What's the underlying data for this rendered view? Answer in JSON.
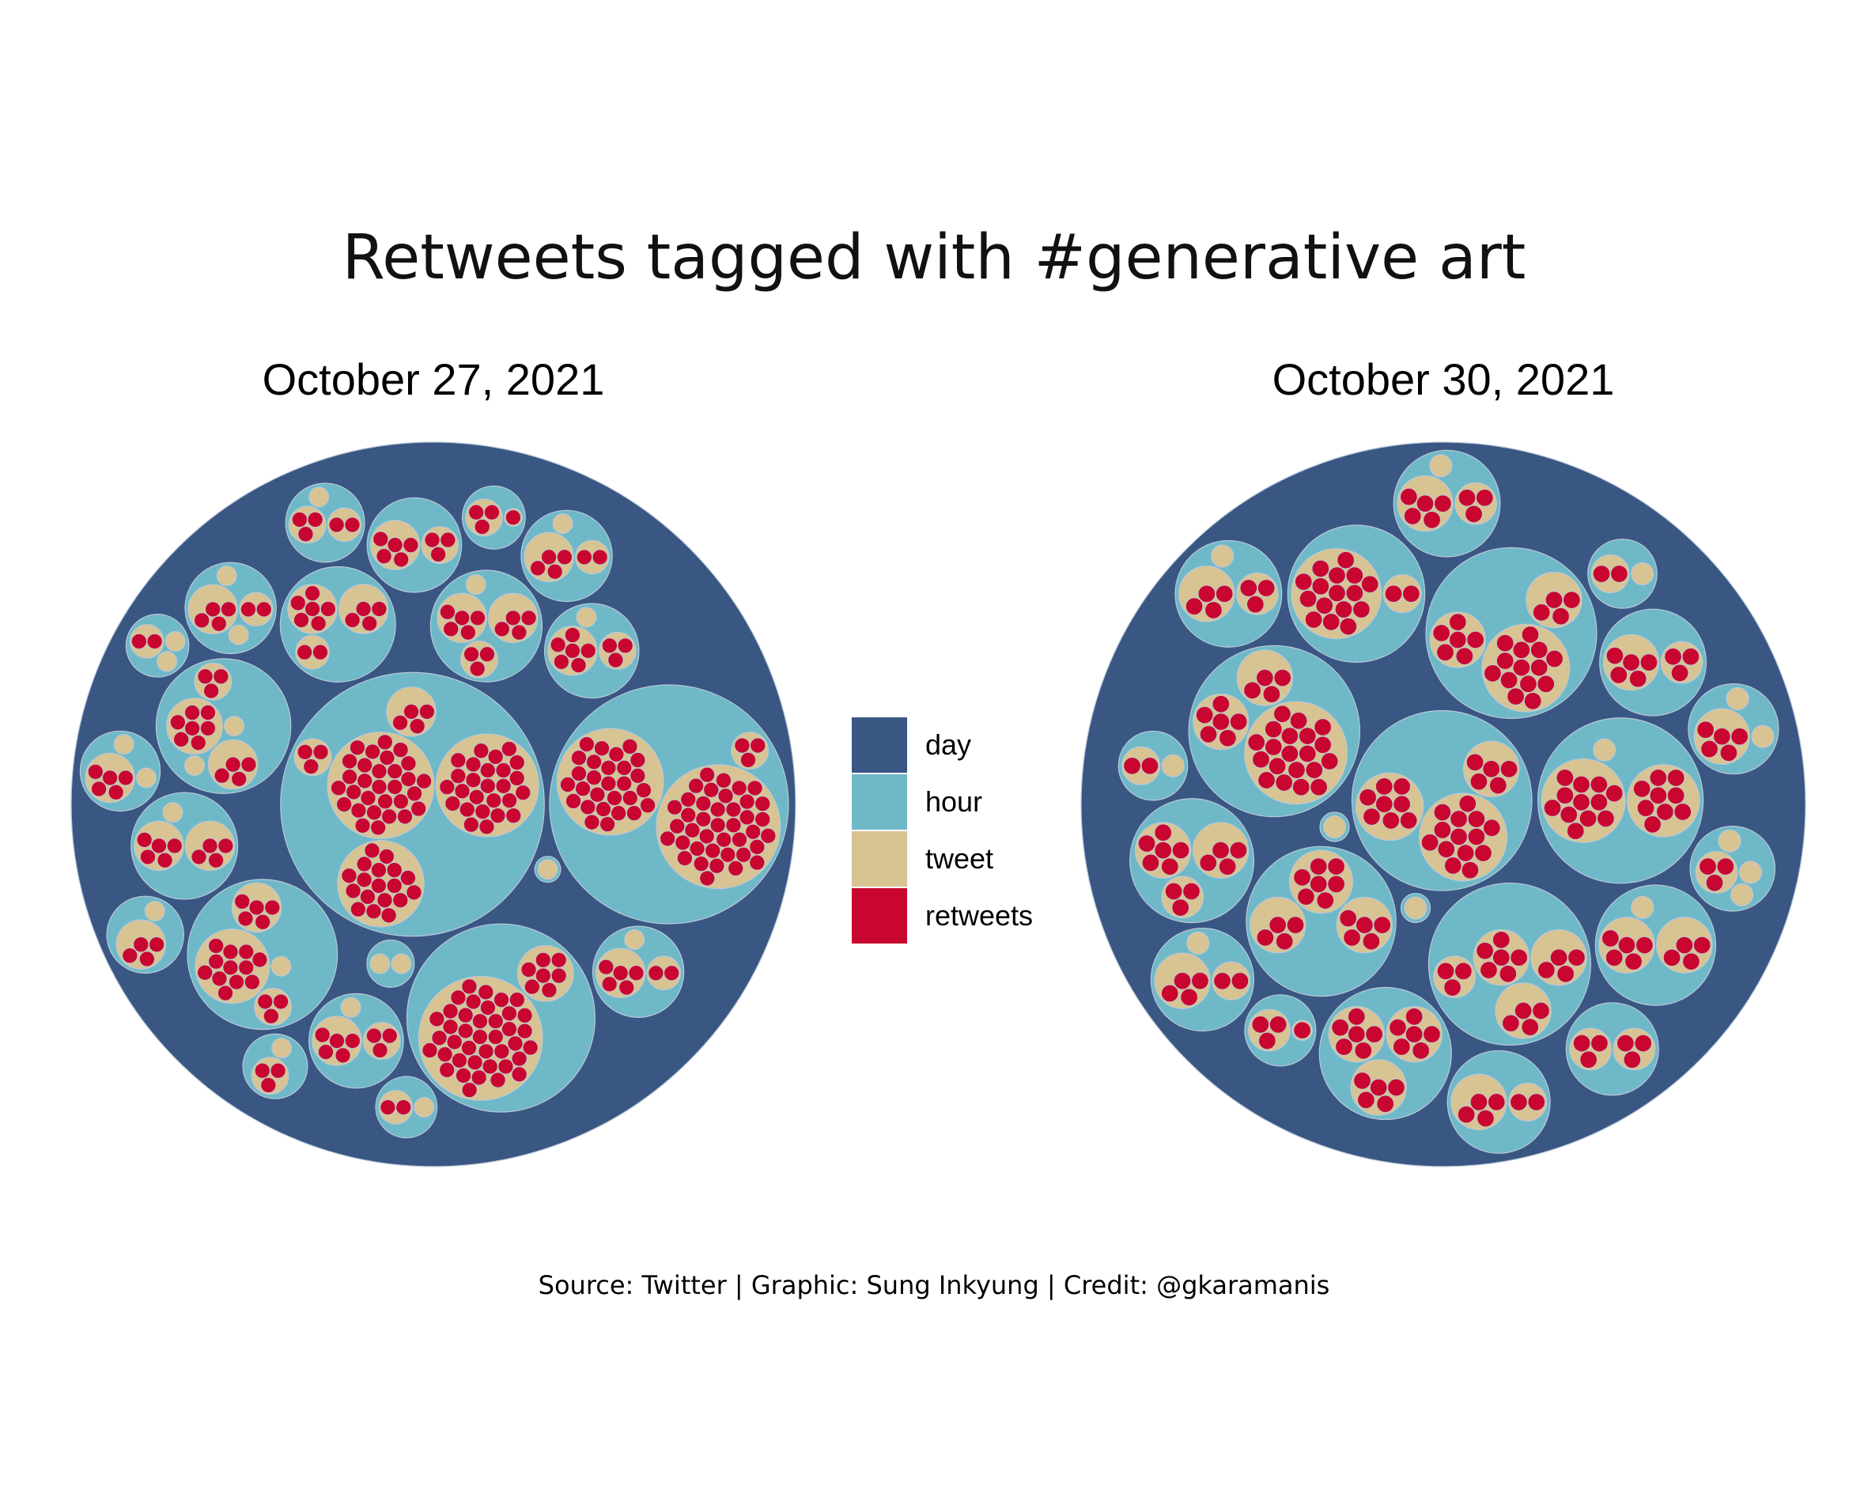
{
  "title": "Retweets tagged with #generative art",
  "caption": "Source: Twitter | Graphic: Sung Inkyung | Credit: @gkaramanis",
  "legend": [
    {
      "label": "day",
      "color": "#3A5683"
    },
    {
      "label": "hour",
      "color": "#6FB8C7"
    },
    {
      "label": "tweet",
      "color": "#D8C393"
    },
    {
      "label": "retweets",
      "color": "#C8062F"
    }
  ],
  "chart_data": [
    {
      "type": "circle-packing",
      "title": "October 27, 2021",
      "hierarchy": [
        "day",
        "hour",
        "tweet",
        "retweets"
      ],
      "hours": [
        {
          "tweets": [
            {
              "retweets": 30
            },
            {
              "retweets": 18
            },
            {
              "retweets": 26
            },
            {
              "retweets": 3
            },
            {
              "retweets": 4
            }
          ]
        },
        {
          "tweets": [
            {
              "retweets": 40
            },
            {
              "retweets": 28
            },
            {
              "retweets": 3
            }
          ]
        },
        {
          "tweets": [
            {
              "retweets": 12
            },
            {
              "retweets": 5
            },
            {
              "retweets": 3
            },
            {
              "retweets": 0
            }
          ]
        },
        {
          "tweets": [
            {
              "retweets": 7
            },
            {
              "retweets": 4
            },
            {
              "retweets": 3
            },
            {
              "retweets": 0
            },
            {
              "retweets": 0
            }
          ]
        },
        {
          "tweets": [
            {
              "retweets": 40
            },
            {
              "retweets": 7
            }
          ]
        },
        {
          "tweets": [
            {
              "retweets": 5
            },
            {
              "retweets": 4
            },
            {
              "retweets": 3
            },
            {
              "retweets": 0
            }
          ]
        },
        {
          "tweets": [
            {
              "retweets": 6
            },
            {
              "retweets": 4
            },
            {
              "retweets": 2
            }
          ]
        },
        {
          "tweets": [
            {
              "retweets": 5
            },
            {
              "retweets": 4
            },
            {
              "retweets": 0
            }
          ]
        },
        {
          "tweets": [
            {
              "retweets": 6
            },
            {
              "retweets": 3
            },
            {
              "retweets": 0
            }
          ]
        },
        {
          "tweets": [
            {
              "retweets": 4
            },
            {
              "retweets": 2
            },
            {
              "retweets": 0
            },
            {
              "retweets": 0
            }
          ]
        },
        {
          "tweets": [
            {
              "retweets": 5
            },
            {
              "retweets": 2
            },
            {
              "retweets": 0
            }
          ]
        },
        {
          "tweets": [
            {
              "retweets": 5
            },
            {
              "retweets": 3
            },
            {
              "retweets": 0
            }
          ]
        },
        {
          "tweets": [
            {
              "retweets": 5
            },
            {
              "retweets": 0
            },
            {
              "retweets": 0
            }
          ]
        },
        {
          "tweets": [
            {
              "retweets": 5
            },
            {
              "retweets": 3
            }
          ]
        },
        {
          "tweets": [
            {
              "retweets": 4
            },
            {
              "retweets": 2
            },
            {
              "retweets": 0
            }
          ]
        },
        {
          "tweets": [
            {
              "retweets": 3
            },
            {
              "retweets": 2
            },
            {
              "retweets": 0
            }
          ]
        },
        {
          "tweets": [
            {
              "retweets": 4
            },
            {
              "retweets": 0
            }
          ]
        },
        {
          "tweets": [
            {
              "retweets": 3
            },
            {
              "retweets": 1
            }
          ]
        },
        {
          "tweets": [
            {
              "retweets": 2
            },
            {
              "retweets": 0
            }
          ]
        },
        {
          "tweets": [
            {
              "retweets": 3
            },
            {
              "retweets": 0
            }
          ]
        },
        {
          "tweets": [
            {
              "retweets": 2
            },
            {
              "retweets": 0
            },
            {
              "retweets": 0
            }
          ]
        },
        {
          "tweets": [
            {
              "retweets": 0
            },
            {
              "retweets": 0
            }
          ]
        },
        {
          "tweets": [
            {
              "retweets": 0
            }
          ]
        }
      ]
    },
    {
      "type": "circle-packing",
      "title": "October 30, 2021",
      "hierarchy": [
        "day",
        "hour",
        "tweet",
        "retweets"
      ],
      "hours": [
        {
          "tweets": [
            {
              "retweets": 20
            },
            {
              "retweets": 6
            },
            {
              "retweets": 4
            }
          ]
        },
        {
          "tweets": [
            {
              "retweets": 14
            },
            {
              "retweets": 6
            },
            {
              "retweets": 4
            }
          ]
        },
        {
          "tweets": [
            {
              "retweets": 14
            },
            {
              "retweets": 8
            },
            {
              "retweets": 5
            }
          ]
        },
        {
          "tweets": [
            {
              "retweets": 12
            },
            {
              "retweets": 9
            },
            {
              "retweets": 0
            }
          ]
        },
        {
          "tweets": [
            {
              "retweets": 6
            },
            {
              "retweets": 6
            },
            {
              "retweets": 5
            }
          ]
        },
        {
          "tweets": [
            {
              "retweets": 7
            },
            {
              "retweets": 5
            },
            {
              "retweets": 4
            }
          ]
        },
        {
          "tweets": [
            {
              "retweets": 16
            },
            {
              "retweets": 2
            }
          ]
        },
        {
          "tweets": [
            {
              "retweets": 6
            },
            {
              "retweets": 4
            },
            {
              "retweets": 4
            },
            {
              "retweets": 3
            }
          ]
        },
        {
          "tweets": [
            {
              "retweets": 6
            },
            {
              "retweets": 4
            },
            {
              "retweets": 3
            }
          ]
        },
        {
          "tweets": [
            {
              "retweets": 5
            },
            {
              "retweets": 0
            },
            {
              "retweets": 0
            }
          ]
        },
        {
          "tweets": [
            {
              "retweets": 5
            },
            {
              "retweets": 3
            }
          ]
        },
        {
          "tweets": [
            {
              "retweets": 5
            },
            {
              "retweets": 4
            },
            {
              "retweets": 0
            }
          ]
        },
        {
          "tweets": [
            {
              "retweets": 5
            },
            {
              "retweets": 3
            },
            {
              "retweets": 0
            }
          ]
        },
        {
          "tweets": [
            {
              "retweets": 4
            },
            {
              "retweets": 3
            },
            {
              "retweets": 0
            }
          ]
        },
        {
          "tweets": [
            {
              "retweets": 4
            },
            {
              "retweets": 2
            },
            {
              "retweets": 0
            }
          ]
        },
        {
          "tweets": [
            {
              "retweets": 4
            },
            {
              "retweets": 2
            }
          ]
        },
        {
          "tweets": [
            {
              "retweets": 3
            },
            {
              "retweets": 3
            }
          ]
        },
        {
          "tweets": [
            {
              "retweets": 3
            },
            {
              "retweets": 0
            },
            {
              "retweets": 0
            },
            {
              "retweets": 0
            }
          ]
        },
        {
          "tweets": [
            {
              "retweets": 3
            },
            {
              "retweets": 1
            }
          ]
        },
        {
          "tweets": [
            {
              "retweets": 2
            },
            {
              "retweets": 0
            }
          ]
        },
        {
          "tweets": [
            {
              "retweets": 2
            },
            {
              "retweets": 0
            }
          ]
        },
        {
          "tweets": [
            {
              "retweets": 0
            }
          ]
        },
        {
          "tweets": [
            {
              "retweets": 0
            }
          ]
        }
      ]
    }
  ]
}
